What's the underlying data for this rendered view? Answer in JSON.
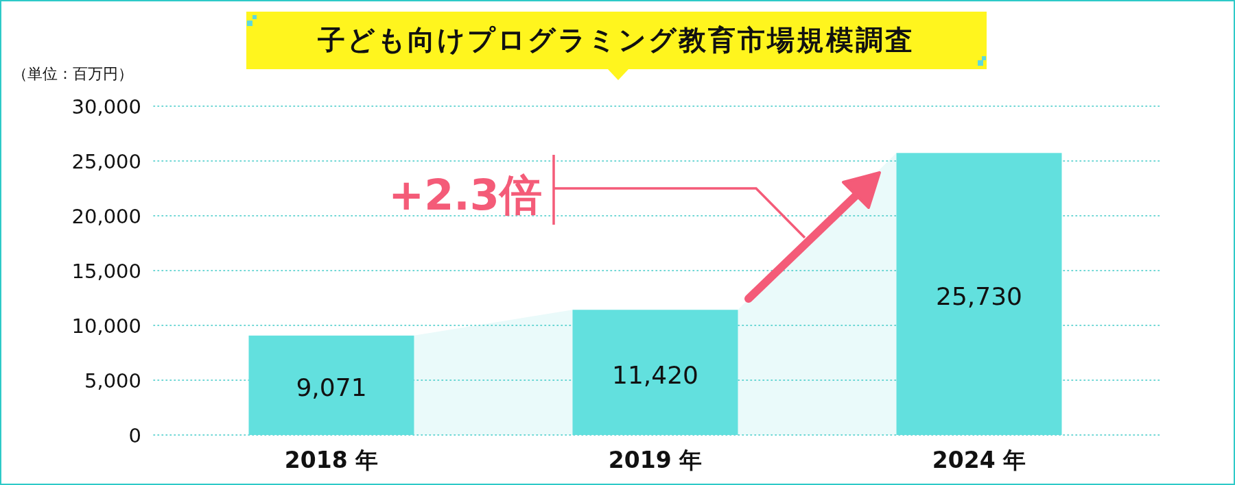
{
  "chart_data": {
    "type": "bar",
    "title": "子ども向けプログラミング教育市場規模調査",
    "ylabel": "（単位：百万円）",
    "categories": [
      "2018 年",
      "2019 年",
      "2024 年"
    ],
    "values": [
      9071,
      11420,
      25730
    ],
    "value_labels": [
      "9,071",
      "11,420",
      "25,730"
    ],
    "color": "#62e0de",
    "ylim": [
      0,
      30000
    ],
    "yticks": [
      0,
      {
        "value": 5000,
        "label": "5,000"
      },
      {
        "value": 10000,
        "label": "10,000"
      },
      {
        "value": 15000,
        "label": "15,000"
      },
      {
        "value": 20000,
        "label": "20,000"
      },
      {
        "value": 25000,
        "label": "25,000"
      },
      {
        "value": 30000,
        "label": "30,000"
      }
    ],
    "grid": "y",
    "annotations": [
      "+2.3倍"
    ]
  }
}
